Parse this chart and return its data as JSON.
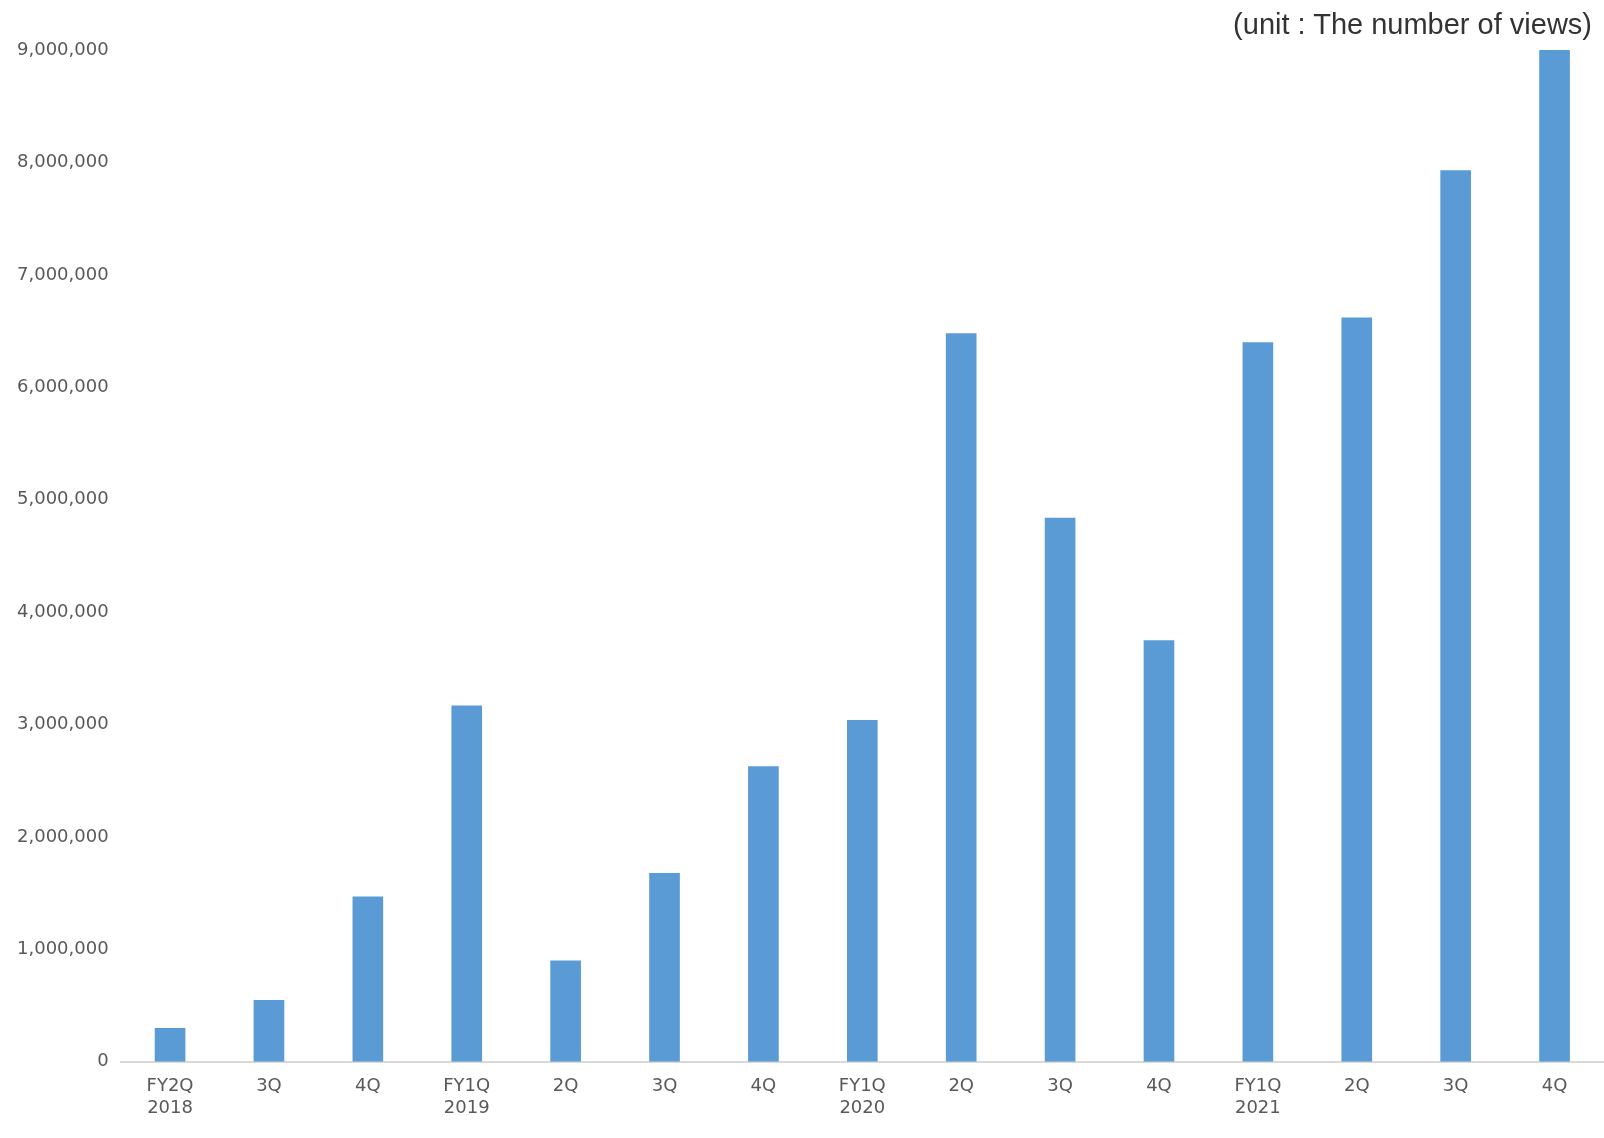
{
  "chart_data": {
    "type": "bar",
    "categories": [
      "FY2Q\n2018",
      "3Q",
      "4Q",
      "FY1Q\n2019",
      "2Q",
      "3Q",
      "4Q",
      "FY1Q\n2020",
      "2Q",
      "3Q",
      "4Q",
      "FY1Q\n2021",
      "2Q",
      "3Q",
      "4Q"
    ],
    "values": [
      300000,
      550000,
      1470000,
      3170000,
      900000,
      1680000,
      2630000,
      3040000,
      6480000,
      4840000,
      3750000,
      6400000,
      6620000,
      7930000,
      9000000
    ],
    "color": "#5b9bd5",
    "ylim": [
      0,
      9000000
    ],
    "yticks": [
      0,
      {
        "value": 1000000,
        "label": "1,000,000"
      },
      {
        "value": 2000000,
        "label": "2,000,000"
      },
      {
        "value": 3000000,
        "label": "3,000,000"
      },
      {
        "value": 4000000,
        "label": "4,000,000"
      },
      {
        "value": 5000000,
        "label": "5,000,000"
      },
      {
        "value": 6000000,
        "label": "6,000,000"
      },
      {
        "value": 7000000,
        "label": "7,000,000"
      },
      {
        "value": 8000000,
        "label": "8,000,000"
      },
      {
        "value": 9000000,
        "label": "9,000,000"
      }
    ],
    "grid": false,
    "legend": false,
    "annotations": [
      "(unit : The number of views)"
    ]
  }
}
